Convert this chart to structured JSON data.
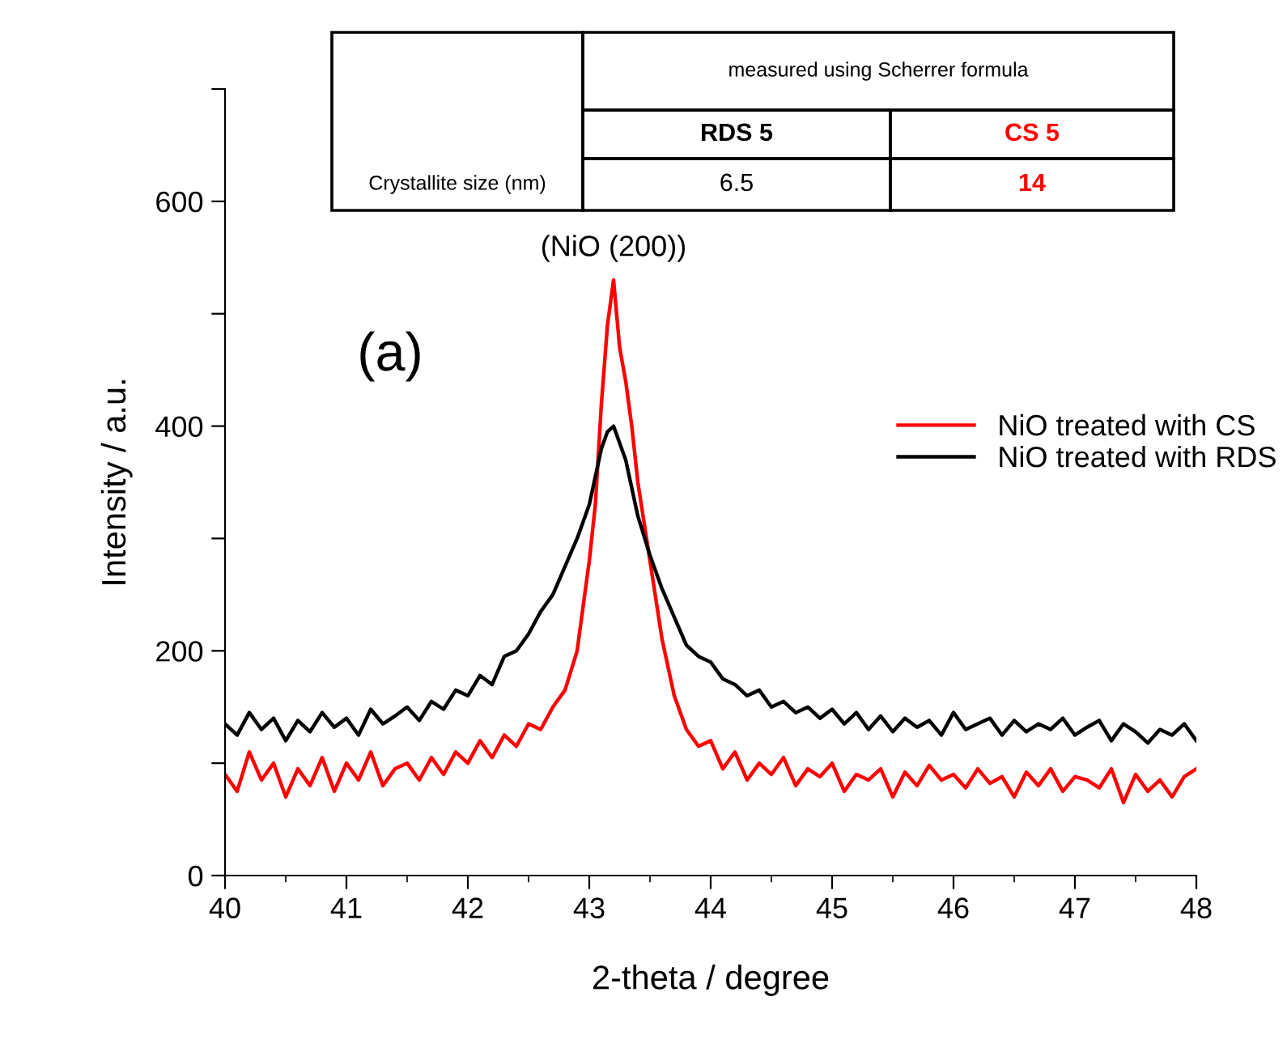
{
  "chart_data": {
    "type": "line",
    "xlabel": "2-theta / degree",
    "ylabel": "Intensity / a.u.",
    "x": [
      40.0,
      40.1,
      40.2,
      40.3,
      40.4,
      40.5,
      40.6,
      40.7,
      40.8,
      40.9,
      41.0,
      41.1,
      41.2,
      41.3,
      41.4,
      41.5,
      41.6,
      41.7,
      41.8,
      41.9,
      42.0,
      42.1,
      42.2,
      42.3,
      42.4,
      42.5,
      42.6,
      42.7,
      42.8,
      42.9,
      43.0,
      43.05,
      43.1,
      43.15,
      43.2,
      43.25,
      43.3,
      43.35,
      43.4,
      43.5,
      43.6,
      43.7,
      43.8,
      43.9,
      44.0,
      44.1,
      44.2,
      44.3,
      44.4,
      44.5,
      44.6,
      44.7,
      44.8,
      44.9,
      45.0,
      45.1,
      45.2,
      45.3,
      45.4,
      45.5,
      45.6,
      45.7,
      45.8,
      45.9,
      46.0,
      46.1,
      46.2,
      46.3,
      46.4,
      46.5,
      46.6,
      46.7,
      46.8,
      46.9,
      47.0,
      47.1,
      47.2,
      47.3,
      47.4,
      47.5,
      47.6,
      47.7,
      47.8,
      47.9,
      48.0
    ],
    "series": [
      {
        "name": "NiO treated with CS",
        "color": "#ff0000",
        "values": [
          90,
          75,
          110,
          85,
          100,
          70,
          95,
          80,
          105,
          75,
          100,
          85,
          110,
          80,
          95,
          100,
          85,
          105,
          90,
          110,
          100,
          120,
          105,
          125,
          115,
          135,
          130,
          150,
          165,
          200,
          280,
          330,
          420,
          490,
          530,
          470,
          440,
          400,
          350,
          280,
          210,
          160,
          130,
          115,
          120,
          95,
          110,
          85,
          100,
          90,
          105,
          80,
          95,
          88,
          100,
          75,
          90,
          85,
          95,
          70,
          92,
          80,
          98,
          85,
          90,
          78,
          95,
          82,
          88,
          70,
          92,
          80,
          95,
          75,
          88,
          85,
          78,
          95,
          65,
          90,
          75,
          85,
          70,
          88,
          95
        ]
      },
      {
        "name": "NiO treated with RDS",
        "color": "#000000",
        "values": [
          135,
          125,
          145,
          130,
          140,
          120,
          138,
          128,
          145,
          132,
          140,
          125,
          148,
          135,
          142,
          150,
          138,
          155,
          148,
          165,
          160,
          178,
          170,
          195,
          200,
          215,
          235,
          250,
          275,
          300,
          330,
          355,
          380,
          395,
          400,
          385,
          370,
          345,
          320,
          285,
          255,
          230,
          205,
          195,
          190,
          175,
          170,
          160,
          165,
          150,
          155,
          145,
          150,
          140,
          148,
          135,
          145,
          130,
          142,
          128,
          140,
          132,
          138,
          125,
          145,
          130,
          135,
          140,
          125,
          138,
          128,
          135,
          130,
          140,
          125,
          132,
          138,
          120,
          135,
          128,
          118,
          130,
          125,
          135,
          120
        ]
      }
    ],
    "xlim": [
      40,
      48
    ],
    "xticks": [
      40,
      41,
      42,
      43,
      44,
      45,
      46,
      47,
      48
    ],
    "ylim": [
      0,
      700
    ],
    "yticks": [
      0,
      {
        "value": 100,
        "label": null
      },
      200,
      {
        "value": 300,
        "label": null
      },
      400,
      {
        "value": 500,
        "label": null
      },
      600,
      {
        "value": 700,
        "label": null
      }
    ],
    "legend": "top right",
    "grid": false,
    "marker": "none",
    "line_style": "solid",
    "annotations": [
      "measured using Scherrer formula",
      "RDS 5",
      "CS 5",
      "Crystallite size (nm)",
      "6.5",
      "14",
      {
        "text": "(NiO (200))",
        "x": 43.2,
        "y": 530
      },
      "(a)"
    ]
  }
}
